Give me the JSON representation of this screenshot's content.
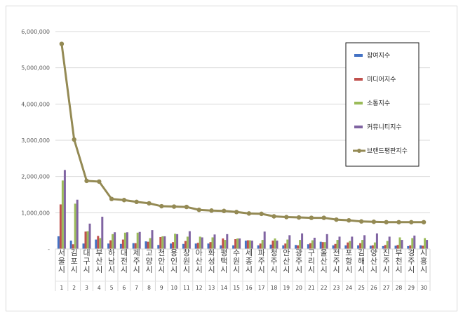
{
  "chart_data": {
    "type": "bar",
    "categories": [
      "서울시",
      "김포시",
      "대구시",
      "부산시",
      "하남시",
      "대전시",
      "제주시",
      "고양시",
      "천안시",
      "용인시",
      "창원시",
      "아산시",
      "화성시",
      "평택시",
      "수원시",
      "세종시",
      "파주시",
      "청주시",
      "안산시",
      "광주시",
      "구리시",
      "울산시",
      "전주시",
      "포항시",
      "김해시",
      "양산시",
      "진주시",
      "부천시",
      "경주시",
      "시흥시"
    ],
    "ranks": [
      "1",
      "2",
      "3",
      "4",
      "5",
      "6",
      "7",
      "8",
      "9",
      "10",
      "11",
      "12",
      "13",
      "14",
      "15",
      "16",
      "17",
      "18",
      "19",
      "20",
      "21",
      "22",
      "23",
      "24",
      "25",
      "26",
      "27",
      "28",
      "29",
      "30"
    ],
    "series": [
      {
        "name": "참여지수",
        "type": "bar",
        "color": "#4472c4",
        "values": [
          350000,
          230000,
          150000,
          260000,
          150000,
          140000,
          160000,
          210000,
          110000,
          150000,
          140000,
          150000,
          150000,
          100000,
          100000,
          230000,
          100000,
          120000,
          100000,
          110000,
          130000,
          200000,
          100000,
          100000,
          100000,
          90000,
          80000,
          90000,
          80000,
          100000
        ]
      },
      {
        "name": "미디어지수",
        "type": "bar",
        "color": "#c0504d",
        "values": [
          1230000,
          130000,
          480000,
          360000,
          240000,
          260000,
          160000,
          200000,
          330000,
          190000,
          220000,
          170000,
          190000,
          290000,
          270000,
          240000,
          150000,
          230000,
          150000,
          100000,
          160000,
          190000,
          140000,
          180000,
          160000,
          100000,
          110000,
          110000,
          100000,
          90000
        ]
      },
      {
        "name": "소통지수",
        "type": "bar",
        "color": "#9bbb59",
        "values": [
          1890000,
          1250000,
          490000,
          300000,
          410000,
          450000,
          450000,
          300000,
          350000,
          420000,
          340000,
          340000,
          320000,
          250000,
          290000,
          240000,
          250000,
          290000,
          260000,
          250000,
          240000,
          190000,
          250000,
          220000,
          250000,
          180000,
          220000,
          320000,
          300000,
          300000
        ]
      },
      {
        "name": "커뮤니티지수",
        "type": "bar",
        "color": "#8064a2",
        "values": [
          2180000,
          1360000,
          700000,
          890000,
          460000,
          460000,
          470000,
          520000,
          350000,
          410000,
          490000,
          320000,
          400000,
          410000,
          290000,
          230000,
          480000,
          230000,
          380000,
          430000,
          310000,
          410000,
          340000,
          340000,
          380000,
          430000,
          340000,
          250000,
          370000,
          250000
        ]
      },
      {
        "name": "브랜드평판지수",
        "type": "line",
        "color": "#948a54",
        "values": [
          5660000,
          3020000,
          1880000,
          1860000,
          1380000,
          1350000,
          1300000,
          1260000,
          1180000,
          1170000,
          1160000,
          1080000,
          1060000,
          1050000,
          1020000,
          980000,
          970000,
          900000,
          880000,
          870000,
          860000,
          860000,
          810000,
          790000,
          760000,
          750000,
          740000,
          740000,
          740000,
          740000
        ]
      }
    ],
    "y_ticks": [
      "-",
      "1,000,000",
      "2,000,000",
      "3,000,000",
      "4,000,000",
      "5,000,000",
      "6,000,000"
    ],
    "ylim": [
      0,
      6000000
    ],
    "grid": true,
    "legend_position": "top-right"
  }
}
